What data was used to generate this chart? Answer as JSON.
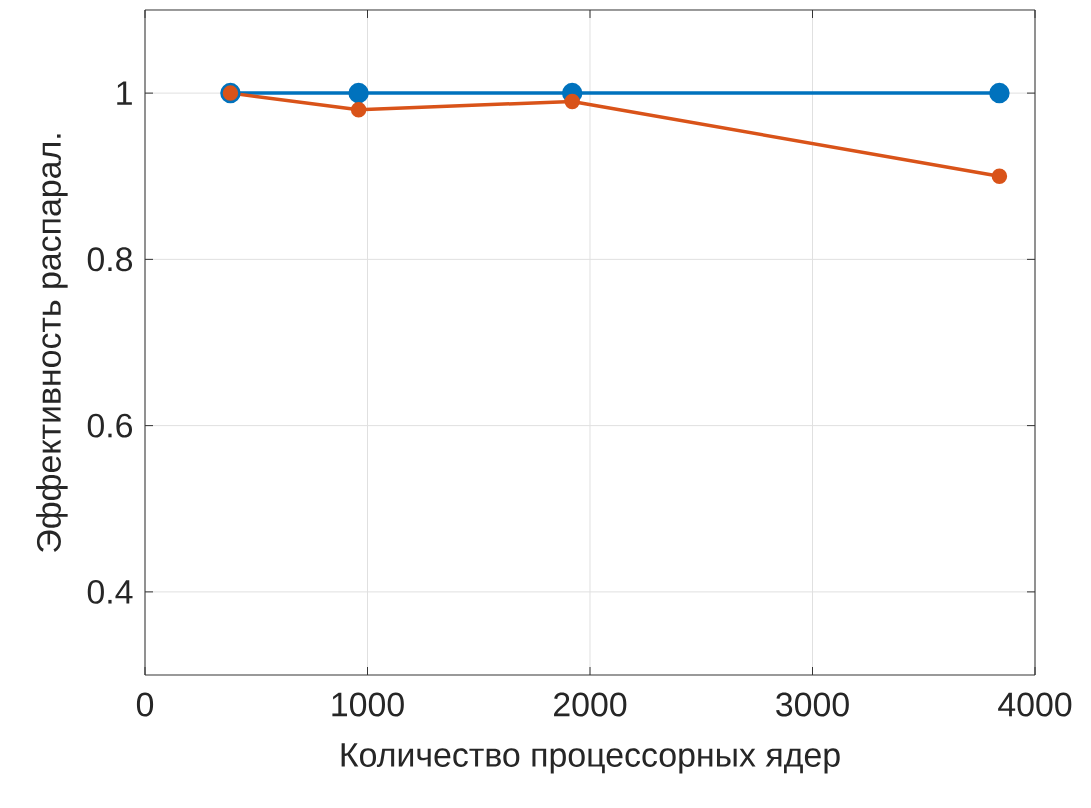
{
  "chart_data": {
    "type": "line",
    "xlabel": "Количество процессорных ядер",
    "ylabel": "Эффективность распарал.",
    "x": [
      384,
      960,
      1920,
      3840
    ],
    "series": [
      {
        "color": "#0072bd",
        "values": [
          1,
          1,
          1,
          1
        ]
      },
      {
        "color": "#d95319",
        "values": [
          1,
          0.98,
          0.99,
          0.9
        ]
      }
    ],
    "xlim": [
      0,
      4000
    ],
    "ylim": [
      0.3,
      1.1
    ],
    "xticks": [
      0,
      1000,
      2000,
      3000,
      4000
    ],
    "yticks": [
      0.4,
      0.6,
      0.8,
      1
    ],
    "grid": true,
    "marker": "circle",
    "line_style": "solid"
  }
}
